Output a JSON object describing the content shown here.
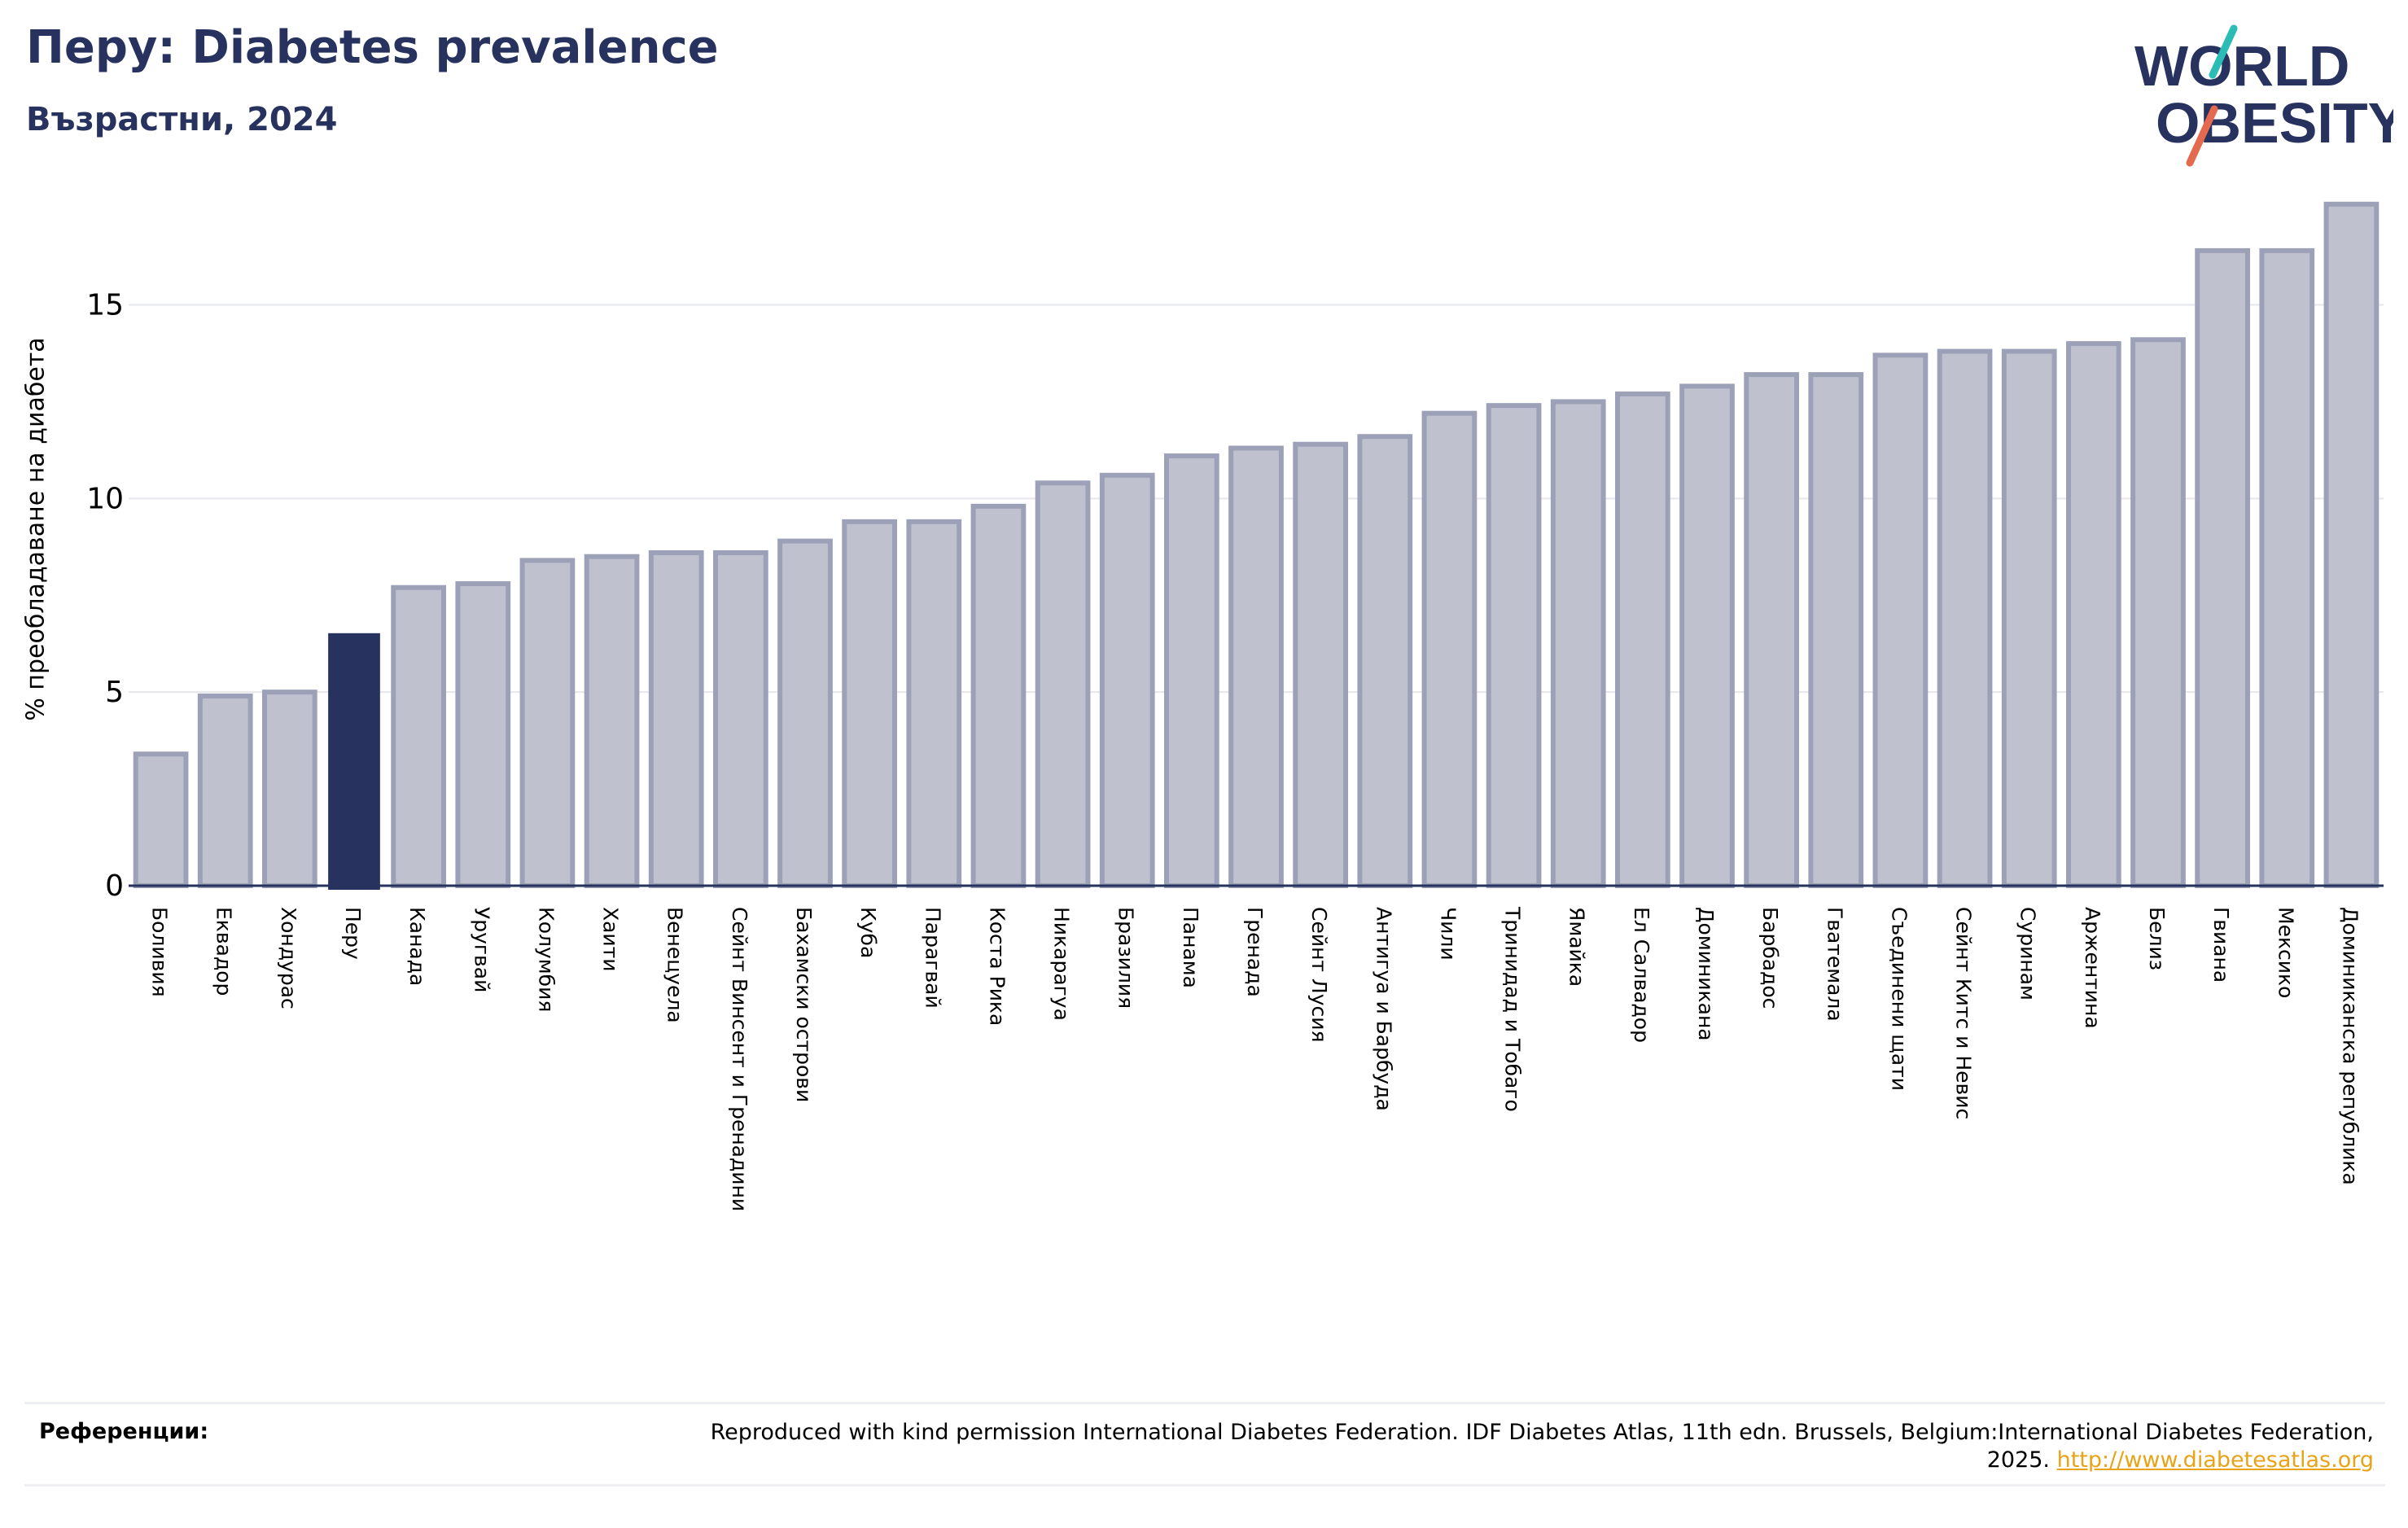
{
  "header": {
    "title": "Перу: Diabetes prevalence",
    "subtitle": "Възрастни, 2024"
  },
  "logo": {
    "line1": "WORLD",
    "line2": "OBESITY",
    "colors": {
      "text": "#27335e",
      "slash_top": "#2bbcb5",
      "slash_bottom": "#e5694e"
    }
  },
  "references": {
    "label": "Референции:",
    "text": "Reproduced with kind permission International Diabetes Federation. IDF Diabetes Atlas, 11th edn. Brussels, Belgium:International Diabetes Federation, 2025.",
    "link": "http://www.diabetesatlas.org"
  },
  "colors": {
    "bar": "#bfc2ce",
    "bar_edge": "#9ca1b8",
    "highlight": "#27335e",
    "grid": "#e6e7ec",
    "axis": "#27335e"
  },
  "chart_data": {
    "type": "bar",
    "title": "Перу: Diabetes prevalence",
    "subtitle": "Възрастни, 2024",
    "ylabel": "% преобладаване на диабета",
    "xlabel": "",
    "ylim": [
      0,
      18.5
    ],
    "yticks": [
      0,
      5,
      10,
      15
    ],
    "grid": true,
    "highlight": "Перу",
    "categories": [
      "Боливия",
      "Еквадор",
      "Хондурас",
      "Перу",
      "Канада",
      "Уругвай",
      "Колумбия",
      "Хаити",
      "Венецуела",
      "Сейнт Винсент и Гренадини",
      "Бахамски острови",
      "Куба",
      "Парагвай",
      "Коста Рика",
      "Никарагуа",
      "Бразилия",
      "Панама",
      "Гренада",
      "Сейнт Лусия",
      "Антигуа и Барбуда",
      "Чили",
      "Тринидад и Тобаго",
      "Ямайка",
      "Ел Салвадор",
      "Доминикана",
      "Барбадос",
      "Гватемала",
      "Съединени щати",
      "Сейнт Китс и Невис",
      "Суринам",
      "Аржентина",
      "Белиз",
      "Гвиана",
      "Мексико",
      "Доминиканска република"
    ],
    "values": [
      3.4,
      4.9,
      5.0,
      6.5,
      7.7,
      7.8,
      8.4,
      8.5,
      8.6,
      8.6,
      8.9,
      9.4,
      9.4,
      9.8,
      10.4,
      10.6,
      11.1,
      11.3,
      11.4,
      11.6,
      12.2,
      12.4,
      12.5,
      12.7,
      12.9,
      13.2,
      13.2,
      13.7,
      13.8,
      13.8,
      14.0,
      14.1,
      16.4,
      16.4,
      17.6
    ]
  }
}
